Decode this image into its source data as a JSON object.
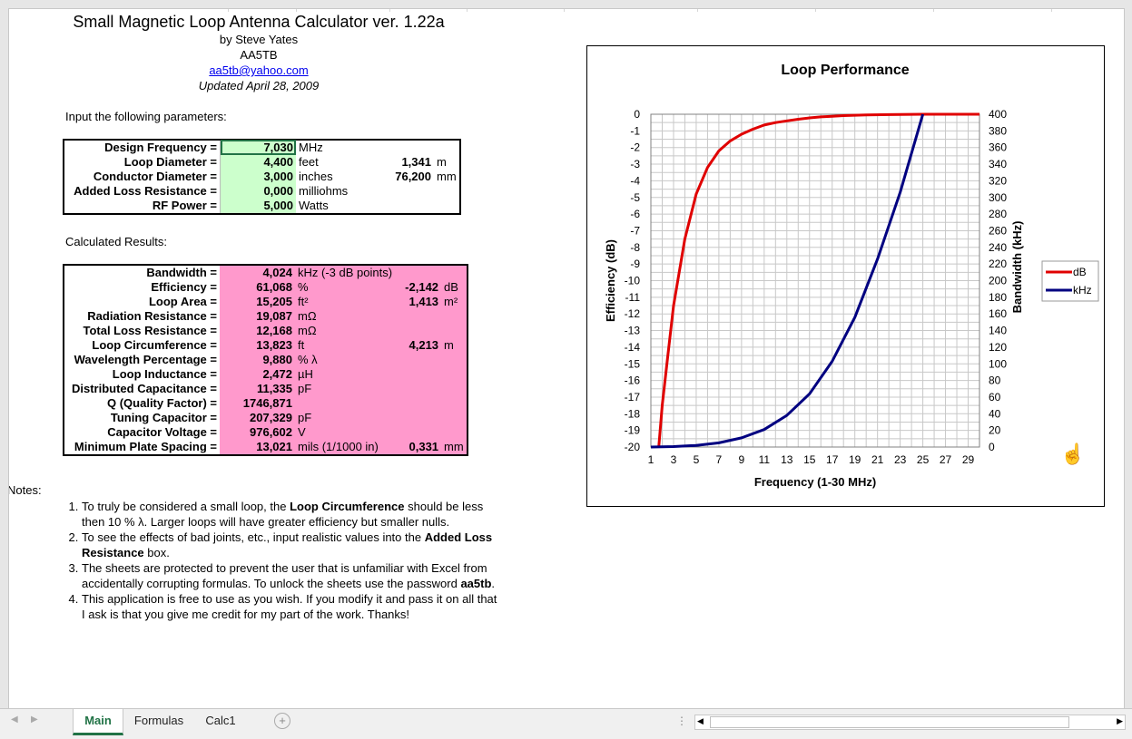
{
  "header": {
    "title": "Small Magnetic Loop Antenna Calculator ver. 1.22a",
    "author": "by Steve Yates",
    "callsign": "AA5TB",
    "email": "aa5tb@yahoo.com",
    "updated": "Updated April 28, 2009"
  },
  "inputs": {
    "heading": "Input the following parameters:",
    "rows": [
      {
        "label": "Design Frequency =",
        "value": "7,030",
        "unit": "MHz",
        "extra": "",
        "extra_unit": ""
      },
      {
        "label": "Loop Diameter =",
        "value": "4,400",
        "unit": "feet",
        "extra": "1,341",
        "extra_unit": "m"
      },
      {
        "label": "Conductor Diameter =",
        "value": "3,000",
        "unit": "inches",
        "extra": "76,200",
        "extra_unit": "mm"
      },
      {
        "label": "Added Loss Resistance =",
        "value": "0,000",
        "unit": "milliohms",
        "extra": "",
        "extra_unit": ""
      },
      {
        "label": "RF Power =",
        "value": "5,000",
        "unit": "Watts",
        "extra": "",
        "extra_unit": ""
      }
    ]
  },
  "results": {
    "heading": "Calculated Results:",
    "rows": [
      {
        "label": "Bandwidth =",
        "value": "4,024",
        "unit": "kHz (-3 dB points)",
        "extra": "",
        "extra_unit": ""
      },
      {
        "label": "Efficiency =",
        "value": "61,068",
        "unit": "%",
        "extra": "-2,142",
        "extra_unit": "dB"
      },
      {
        "label": "Loop Area =",
        "value": "15,205",
        "unit": "ft²",
        "extra": "1,413",
        "extra_unit": "m²"
      },
      {
        "label": "Radiation Resistance =",
        "value": "19,087",
        "unit": "mΩ",
        "extra": "",
        "extra_unit": ""
      },
      {
        "label": "Total Loss Resistance =",
        "value": "12,168",
        "unit": "mΩ",
        "extra": "",
        "extra_unit": ""
      },
      {
        "label": "Loop Circumference =",
        "value": "13,823",
        "unit": "ft",
        "extra": "4,213",
        "extra_unit": "m"
      },
      {
        "label": "Wavelength Percentage =",
        "value": "9,880",
        "unit": "% λ",
        "extra": "",
        "extra_unit": ""
      },
      {
        "label": "Loop Inductance =",
        "value": "2,472",
        "unit": "µH",
        "extra": "",
        "extra_unit": ""
      },
      {
        "label": "Distributed Capacitance =",
        "value": "11,335",
        "unit": "pF",
        "extra": "",
        "extra_unit": ""
      },
      {
        "label": "Q (Quality Factor) =",
        "value": "1746,871",
        "unit": "",
        "extra": "",
        "extra_unit": ""
      },
      {
        "label": "Tuning Capacitor =",
        "value": "207,329",
        "unit": "pF",
        "extra": "",
        "extra_unit": ""
      },
      {
        "label": "Capacitor Voltage =",
        "value": "976,602",
        "unit": "V",
        "extra": "",
        "extra_unit": ""
      },
      {
        "label": "Minimum Plate Spacing =",
        "value": "13,021",
        "unit": "mils (1/1000 in)",
        "extra": "0,331",
        "extra_unit": "mm"
      }
    ]
  },
  "notes": {
    "heading": "Notes:",
    "n1a": "To truly be considered a small loop, the ",
    "n1b": "Loop Circumference",
    "n1c": " should be less then 10 % λ.  Larger loops will have greater efficiency but smaller nulls.",
    "n2a": "To see the effects of bad joints, etc., input realistic values into the ",
    "n2b": "Added Loss Resistance",
    "n2c": " box.",
    "n3a": "The sheets are protected to prevent the user that is unfamiliar with Excel from accidentally corrupting formulas.  To unlock the sheets use the password ",
    "n3b": "aa5tb",
    "n3c": ".",
    "n4": "This application is free to use as you wish.  If you modify it and pass it on all that I ask is that you give me credit for my part of the work. Thanks!"
  },
  "tabs": [
    {
      "label": "Main",
      "active": true
    },
    {
      "label": "Formulas",
      "active": false
    },
    {
      "label": "Calc1",
      "active": false
    }
  ],
  "chart_data": {
    "type": "line",
    "title": "Loop Performance",
    "xlabel": "Frequency (1-30 MHz)",
    "ylabel_left": "Efficiency (dB)",
    "ylabel_right": "Bandwidth (kHz)",
    "xlim": [
      1,
      30
    ],
    "ylim_left": [
      -20,
      0
    ],
    "ylim_right": [
      0,
      400
    ],
    "x_ticks": [
      1,
      3,
      5,
      7,
      9,
      11,
      13,
      15,
      17,
      19,
      21,
      23,
      25,
      27,
      29
    ],
    "y_left_ticks": [
      0,
      -1,
      -2,
      -3,
      -4,
      -5,
      -6,
      -7,
      -8,
      -9,
      -10,
      -11,
      -12,
      -13,
      -14,
      -15,
      -16,
      -17,
      -18,
      -19,
      -20
    ],
    "y_right_ticks": [
      400,
      380,
      360,
      340,
      320,
      300,
      280,
      260,
      240,
      220,
      200,
      180,
      160,
      140,
      120,
      100,
      80,
      60,
      40,
      20,
      0
    ],
    "grid": true,
    "legend_position": "right",
    "series": [
      {
        "name": "dB",
        "axis": "left",
        "color": "#e00000",
        "x": [
          1.7,
          2,
          2.5,
          3,
          4,
          5,
          6,
          7,
          8,
          9,
          10,
          11,
          12,
          13,
          14,
          15,
          16,
          17,
          18,
          19,
          20,
          22,
          25,
          30
        ],
        "y": [
          -20,
          -17.5,
          -14.5,
          -11.5,
          -7.5,
          -4.8,
          -3.2,
          -2.2,
          -1.6,
          -1.2,
          -0.9,
          -0.65,
          -0.5,
          -0.4,
          -0.3,
          -0.22,
          -0.16,
          -0.12,
          -0.08,
          -0.06,
          -0.04,
          -0.02,
          0,
          0
        ]
      },
      {
        "name": "kHz",
        "axis": "right",
        "color": "#000080",
        "x": [
          1,
          3,
          5,
          7,
          9,
          11,
          13,
          15,
          17,
          19,
          21,
          23,
          25
        ],
        "y": [
          0,
          0.5,
          2,
          5,
          11,
          21,
          38,
          64,
          103,
          156,
          226,
          306,
          400
        ]
      }
    ]
  }
}
